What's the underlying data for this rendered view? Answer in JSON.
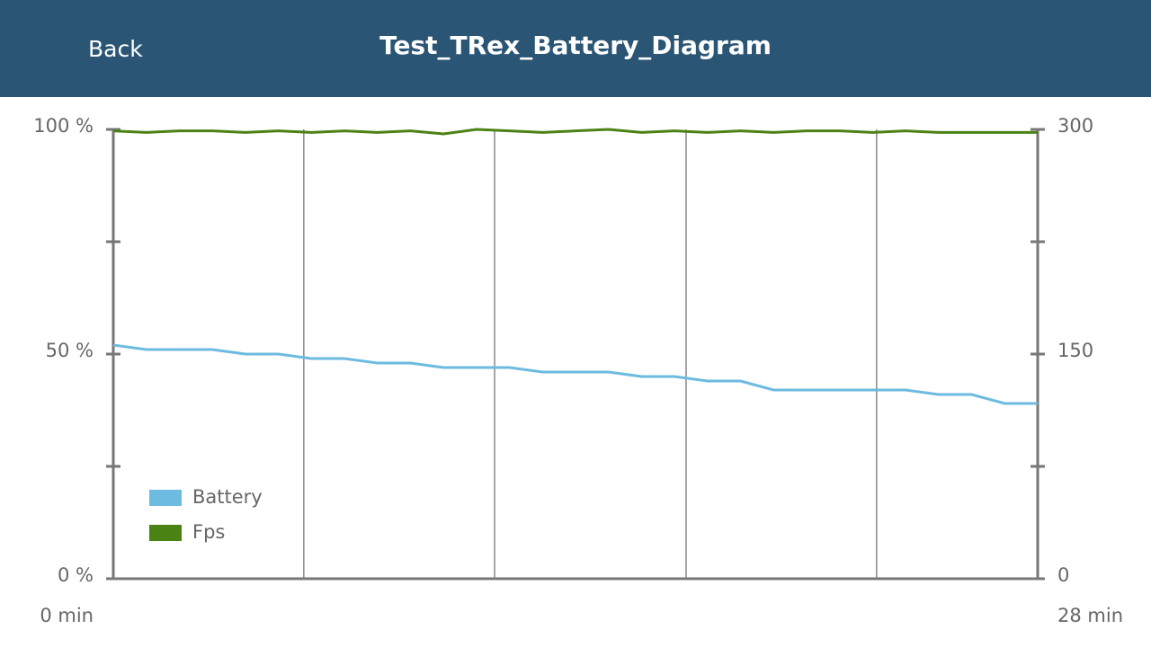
{
  "header": {
    "back": "Back",
    "title": "Test_TRex_Battery_Diagram"
  },
  "chart_data": {
    "type": "line",
    "x": [
      0,
      1,
      2,
      3,
      4,
      5,
      6,
      7,
      8,
      9,
      10,
      11,
      12,
      13,
      14,
      15,
      16,
      17,
      18,
      19,
      20,
      21,
      22,
      23,
      24,
      25,
      26,
      27,
      28
    ],
    "series": [
      {
        "name": "Battery",
        "color": "#6dbbe0",
        "values": [
          52,
          51,
          51,
          51,
          50,
          50,
          49,
          49,
          48,
          48,
          47,
          47,
          47,
          46,
          46,
          46,
          45,
          45,
          44,
          44,
          42,
          42,
          42,
          42,
          42,
          41,
          41,
          39,
          39
        ]
      },
      {
        "name": "Fps",
        "color": "#4b8214",
        "axis": "y2",
        "values": [
          299,
          298,
          299,
          299,
          298,
          299,
          298,
          299,
          298,
          299,
          297,
          300,
          299,
          298,
          299,
          300,
          298,
          299,
          298,
          299,
          298,
          299,
          299,
          298,
          299,
          298,
          298,
          298,
          298
        ]
      }
    ],
    "xlim": [
      0,
      28
    ],
    "xticks": [
      {
        "value": 0,
        "label": "0 min"
      },
      {
        "value": 5.77,
        "label": null
      },
      {
        "value": 11.55,
        "label": null
      },
      {
        "value": 17.35,
        "label": null
      },
      {
        "value": 23.12,
        "label": null
      },
      {
        "value": 28,
        "label": "28 min"
      }
    ],
    "ylim": [
      0,
      100
    ],
    "yticks": [
      {
        "value": 0,
        "label": "0 %"
      },
      {
        "value": 25,
        "label": null
      },
      {
        "value": 50,
        "label": "50 %"
      },
      {
        "value": 75,
        "label": null
      },
      {
        "value": 100,
        "label": "100 %"
      }
    ],
    "y2lim": [
      0,
      300
    ],
    "y2ticks": [
      0,
      {
        "value": 75,
        "label": null
      },
      150,
      {
        "value": 225,
        "label": null
      },
      300
    ],
    "grid": true,
    "legend": "lower left"
  }
}
